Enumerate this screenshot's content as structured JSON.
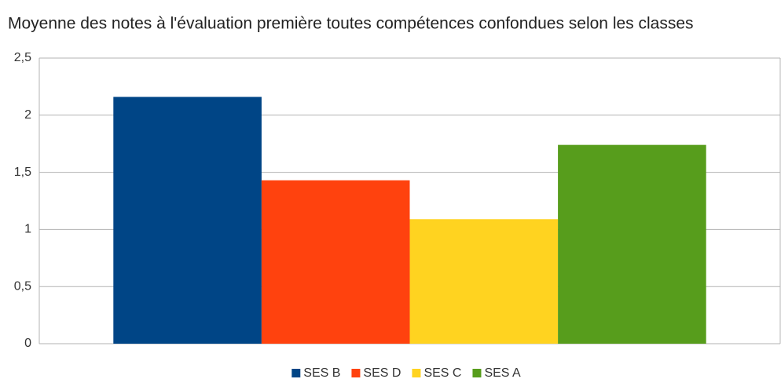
{
  "chart_data": {
    "type": "bar",
    "title": "Moyenne des notes à l'évaluation première toutes compétences confondues selon les classes",
    "categories": [
      null
    ],
    "series": [
      {
        "name": "SES B",
        "color": "#004586",
        "values": [
          2.16
        ]
      },
      {
        "name": "SES D",
        "color": "#ff420e",
        "values": [
          1.43
        ]
      },
      {
        "name": "SES C",
        "color": "#ffd320",
        "values": [
          1.09
        ]
      },
      {
        "name": "SES A",
        "color": "#579d1c",
        "values": [
          1.74
        ]
      }
    ],
    "ylim": [
      0,
      2.5
    ],
    "yticks": [
      0,
      {
        "value": 0.5,
        "label": "0,5"
      },
      1,
      {
        "value": 1.5,
        "label": "1,5"
      },
      2,
      {
        "value": 2.5,
        "label": "2,5"
      }
    ],
    "grid": true,
    "legend": "bottom"
  }
}
